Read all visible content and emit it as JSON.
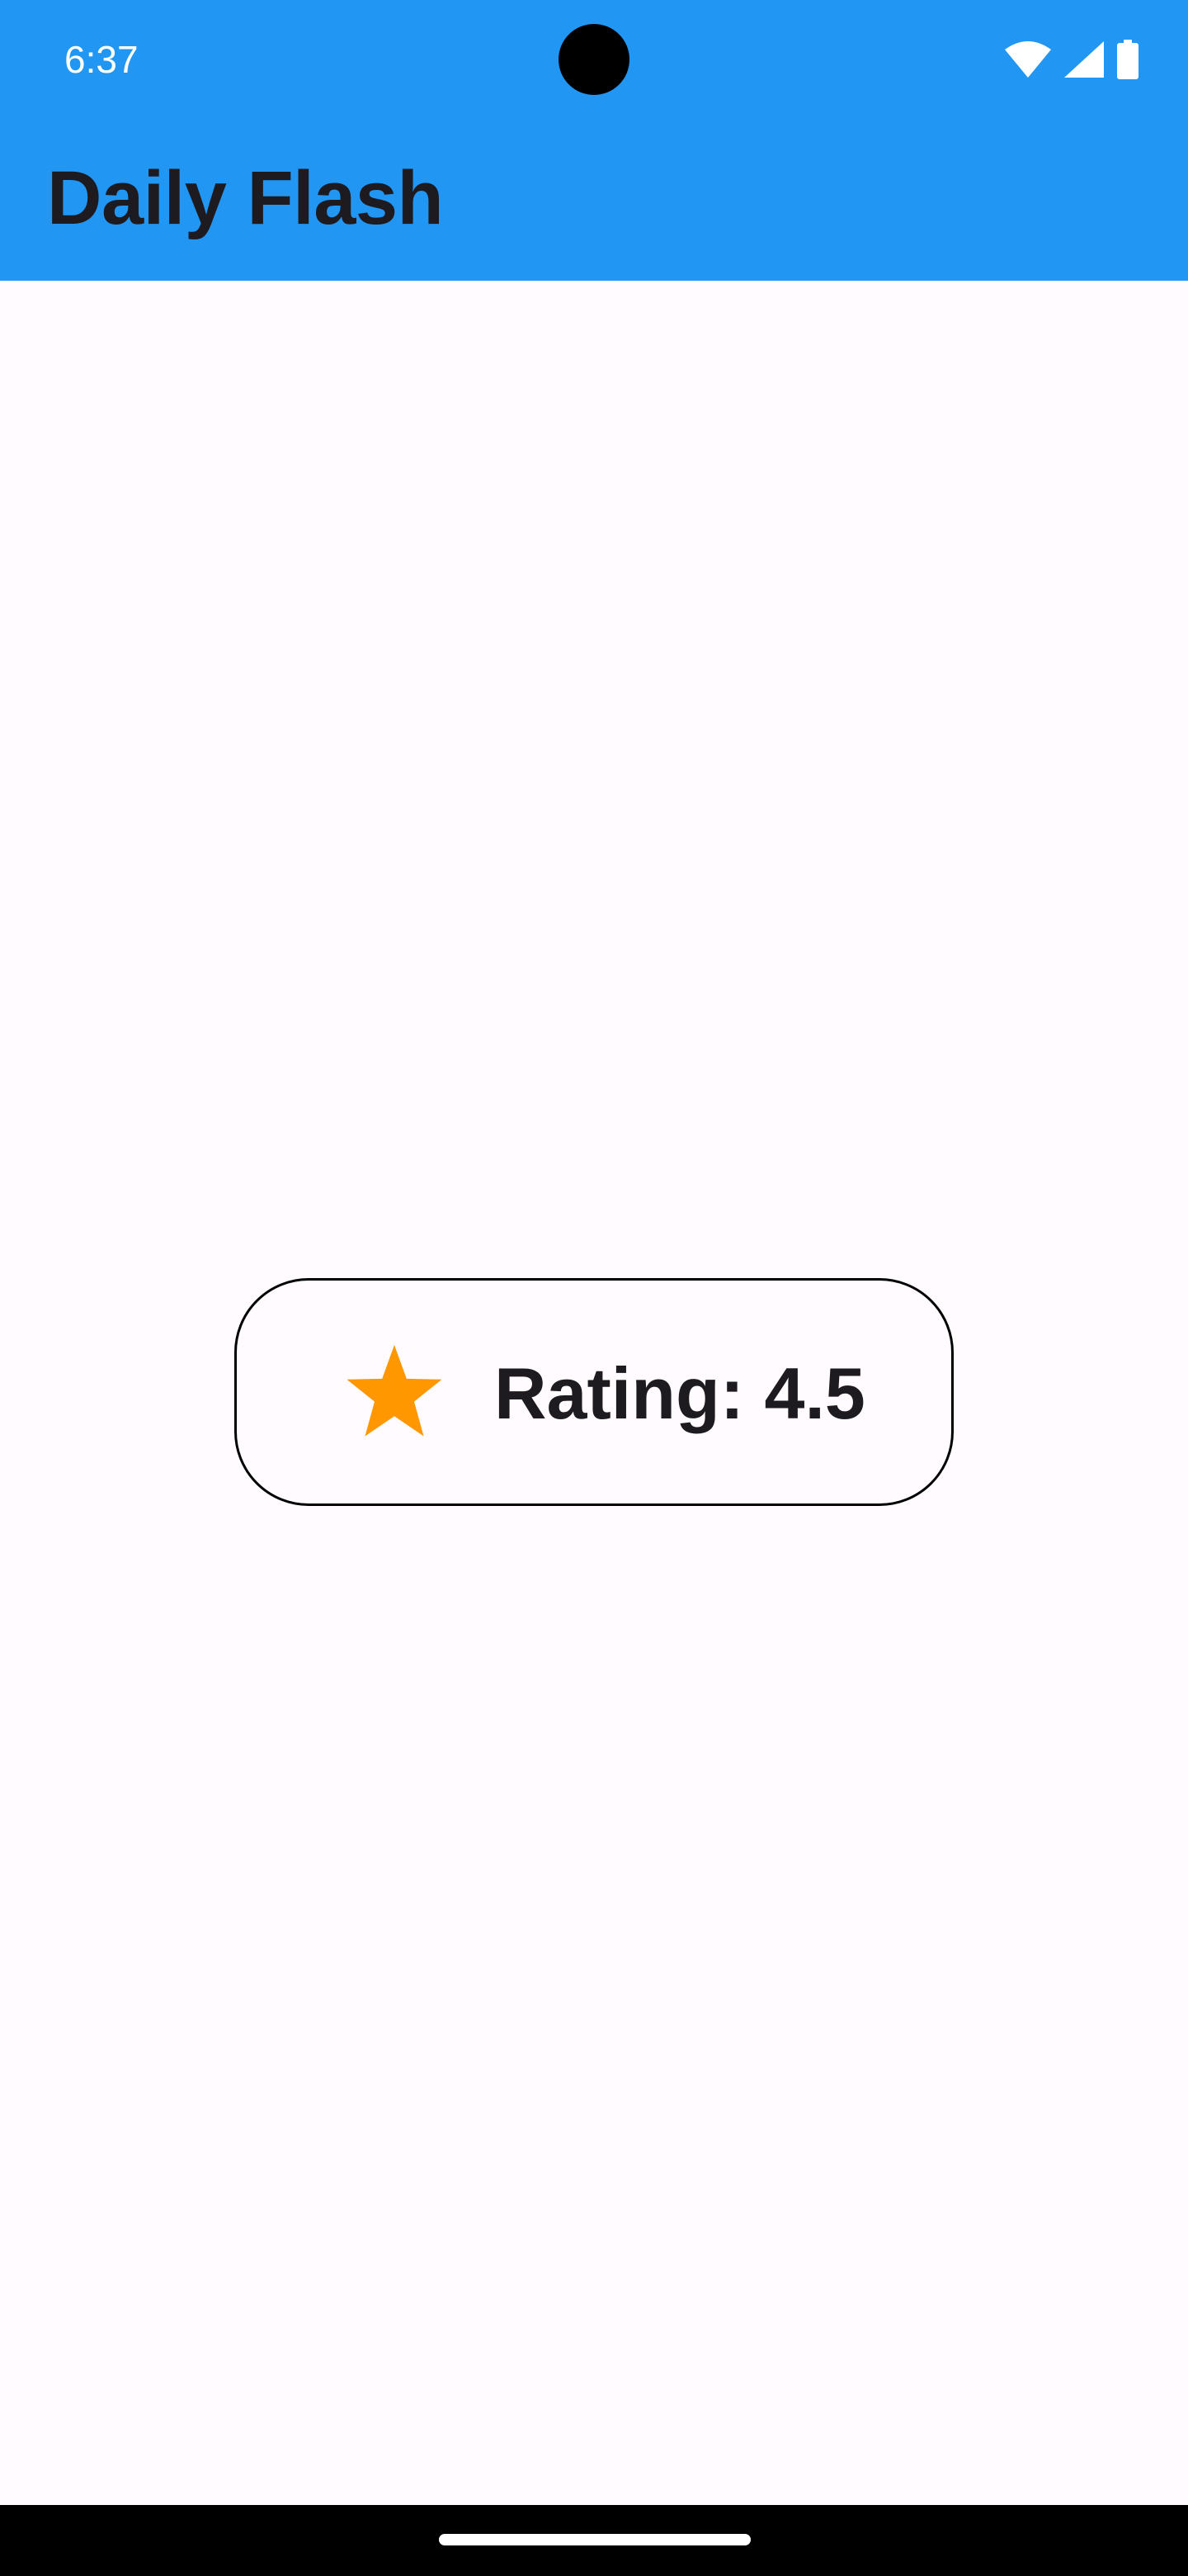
{
  "status_bar": {
    "time": "6:37",
    "icons": [
      "wifi-icon",
      "signal-icon",
      "battery-icon"
    ]
  },
  "app_bar": {
    "title": "Daily Flash",
    "background_color": "#2196f3"
  },
  "rating": {
    "label": "Rating: 4.5",
    "icon": "star-icon",
    "star_color": "#ff9800"
  },
  "navigation": {
    "handle": "home-handle"
  }
}
